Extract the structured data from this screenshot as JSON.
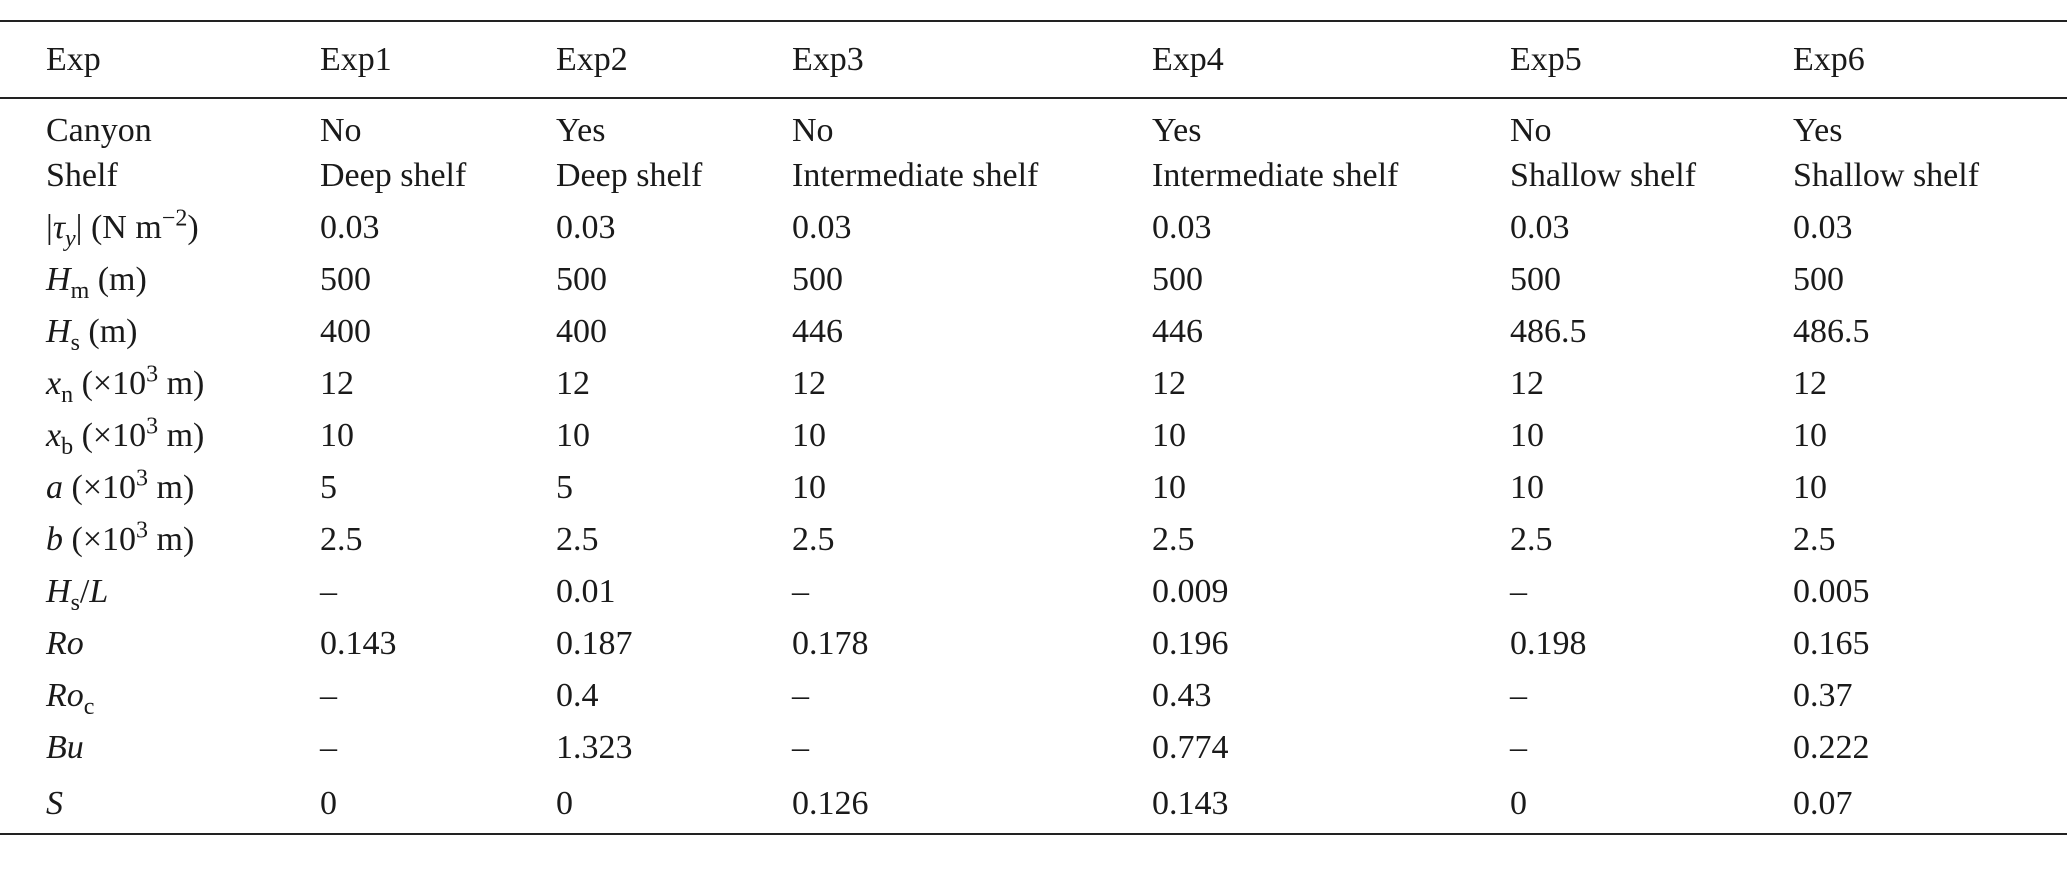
{
  "table": {
    "header": [
      "Exp",
      "Exp1",
      "Exp2",
      "Exp3",
      "Exp4",
      "Exp5",
      "Exp6"
    ],
    "rows": [
      {
        "label": [
          "Canyon"
        ],
        "cells": [
          "No",
          "Yes",
          "No",
          "Yes",
          "No",
          "Yes"
        ]
      },
      {
        "label": [
          "Shelf"
        ],
        "cells": [
          "Deep shelf",
          "Deep shelf",
          "Intermediate shelf",
          "Intermediate shelf",
          "Shallow shelf",
          "Shallow shelf"
        ]
      },
      {
        "label": [
          "|",
          "τ",
          "y",
          "| (N m",
          "−2",
          ")"
        ],
        "cells": [
          0.03,
          0.03,
          0.03,
          0.03,
          0.03,
          0.03
        ]
      },
      {
        "label": [
          "H",
          "m",
          " (m)"
        ],
        "cells": [
          500,
          500,
          500,
          500,
          500,
          500
        ]
      },
      {
        "label": [
          "H",
          "s",
          " (m)"
        ],
        "cells": [
          400,
          400,
          446,
          446,
          486.5,
          486.5
        ]
      },
      {
        "label": [
          "x",
          "n",
          " (×10",
          "3",
          " m)"
        ],
        "cells": [
          12,
          12,
          12,
          12,
          12,
          12
        ]
      },
      {
        "label": [
          "x",
          "b",
          " (×10",
          "3",
          " m)"
        ],
        "cells": [
          10,
          10,
          10,
          10,
          10,
          10
        ]
      },
      {
        "label": [
          "a",
          " (×10",
          "3",
          " m)"
        ],
        "cells": [
          5,
          5,
          10,
          10,
          10,
          10
        ]
      },
      {
        "label": [
          "b",
          " (×10",
          "3",
          " m)"
        ],
        "cells": [
          2.5,
          2.5,
          2.5,
          2.5,
          2.5,
          2.5
        ]
      },
      {
        "label": [
          "H",
          "s",
          "/",
          "L"
        ],
        "cells": [
          "–",
          0.01,
          "–",
          0.009,
          "–",
          0.005
        ]
      },
      {
        "label": [
          "Ro"
        ],
        "cells": [
          0.143,
          0.187,
          0.178,
          0.196,
          0.198,
          0.165
        ]
      },
      {
        "label": [
          "Ro",
          "c"
        ],
        "cells": [
          "–",
          0.4,
          "–",
          0.43,
          "–",
          0.37
        ]
      },
      {
        "label": [
          "Bu"
        ],
        "cells": [
          "–",
          1.323,
          "–",
          0.774,
          "–",
          0.222
        ]
      },
      {
        "label": [
          "S"
        ],
        "cells": [
          0,
          0,
          0.126,
          0.143,
          0,
          0.07
        ]
      }
    ]
  }
}
